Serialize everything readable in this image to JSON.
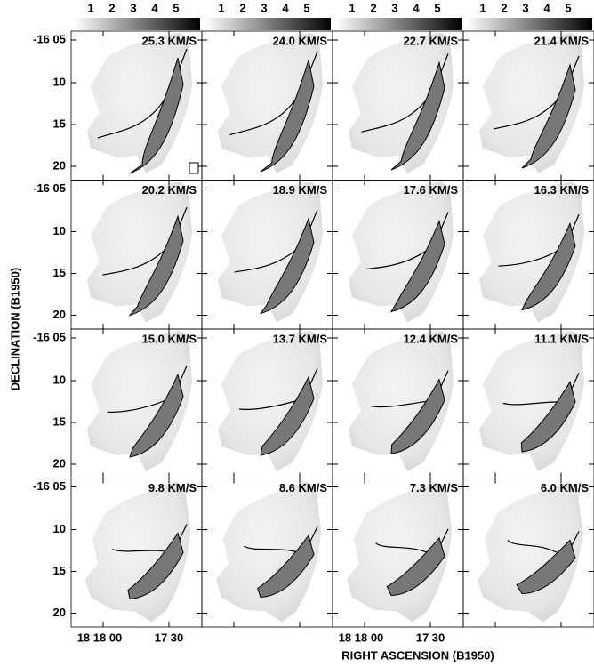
{
  "colorbar_ticks": [
    1,
    2,
    3,
    4,
    5
  ],
  "dec_ticks": [
    "-16 05",
    "10",
    "15",
    "20"
  ],
  "ra_ticks": [
    "18 18 00",
    "17 30"
  ],
  "panels": [
    "25.3 KM/S",
    "24.0 KM/S",
    "22.7 KM/S",
    "21.4 KM/S",
    "20.2 KM/S",
    "18.9 KM/S",
    "17.6 KM/S",
    "16.3 KM/S",
    "15.0 KM/S",
    "13.7 KM/S",
    "12.4 KM/S",
    "11.1 KM/S",
    "9.8 KM/S",
    "8.6 KM/S",
    "7.3 KM/S",
    "6.0 KM/S"
  ],
  "y_label": "DECLINATION (B1950)",
  "x_label": "RIGHT ASCENSION (B1950)"
}
